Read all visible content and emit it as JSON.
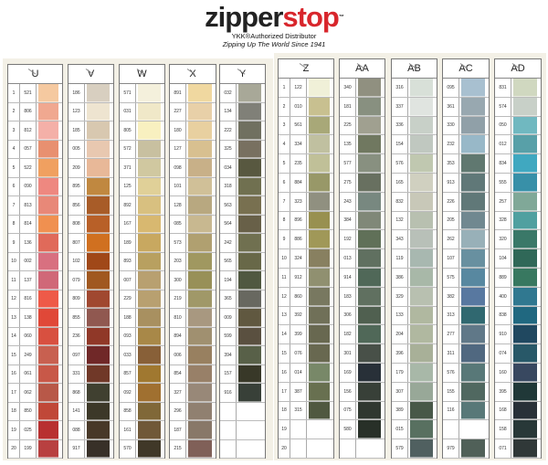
{
  "header": {
    "logo_part1": "zipper",
    "logo_part2": "stop",
    "tm": "™",
    "subtitle": "YKK®Authorized Distributor",
    "tagline": "Zipping Up The World Since 1941"
  },
  "row_numbers": [
    "1",
    "2",
    "3",
    "4",
    "5",
    "6",
    "7",
    "8",
    "9",
    "10",
    "11",
    "12",
    "13",
    "14",
    "15",
    "16",
    "17",
    "18",
    "19",
    "20"
  ],
  "panels": [
    {
      "columns": [
        {
          "label": "U",
          "codes": [
            "521",
            "806",
            "812",
            "057",
            "522",
            "090",
            "813",
            "814",
            "136",
            "002",
            "137",
            "816",
            "138",
            "060",
            "249",
            "061",
            "062",
            "850",
            "025",
            "199"
          ],
          "colors": [
            "#f5c9a0",
            "#f0a890",
            "#f4b0a8",
            "#e89070",
            "#f0a060",
            "#ee8880",
            "#e88878",
            "#f09050",
            "#e06a5a",
            "#d87080",
            "#d06878",
            "#ee5a48",
            "#e04838",
            "#d85040",
            "#c86050",
            "#c85848",
            "#b85848",
            "#c04838",
            "#b83030",
            "#b84040"
          ]
        },
        {
          "label": "V",
          "codes": [
            "186",
            "123",
            "185",
            "005",
            "209",
            "895",
            "856",
            "808",
            "807",
            "102",
            "079",
            "809",
            "855",
            "236",
            "097",
            "331",
            "868",
            "141",
            "088",
            "917"
          ],
          "colors": [
            "#d8cfc0",
            "#eee4d0",
            "#d8c8b0",
            "#e8c8b0",
            "#e8b898",
            "#c08840",
            "#a85c28",
            "#b86028",
            "#d07020",
            "#a04818",
            "#a05820",
            "#a04830",
            "#905850",
            "#903828",
            "#702828",
            "#703828",
            "#404030",
            "#3c3828",
            "#483828",
            "#383028"
          ]
        },
        {
          "label": "W",
          "codes": [
            "571",
            "031",
            "805",
            "572",
            "371",
            "125",
            "892",
            "167",
            "189",
            "893",
            "007",
            "229",
            "188",
            "093",
            "033",
            "857",
            "092",
            "858",
            "161",
            "570"
          ],
          "colors": [
            "#f4f0dc",
            "#f0e8c8",
            "#f8f0c0",
            "#c8c0a0",
            "#d0c8a0",
            "#e0d098",
            "#d8c080",
            "#d8b870",
            "#c8a860",
            "#b8a060",
            "#b8a070",
            "#b8a070",
            "#a89060",
            "#a88848",
            "#886038",
            "#a07830",
            "#a07030",
            "#806838",
            "#705838",
            "#403828"
          ]
        },
        {
          "label": "X",
          "codes": [
            "891",
            "227",
            "180",
            "127",
            "098",
            "101",
            "128",
            "085",
            "573",
            "203",
            "300",
            "219",
            "810",
            "894",
            "006",
            "854",
            "327",
            "296",
            "187",
            "215"
          ],
          "colors": [
            "#f0d8a0",
            "#e8d0a8",
            "#e8d0a0",
            "#d8c090",
            "#c8b088",
            "#d0c098",
            "#b8a880",
            "#c8b890",
            "#b0a070",
            "#a09860",
            "#989058",
            "#a09868",
            "#a89880",
            "#a09070",
            "#988060",
            "#988068",
            "#988878",
            "#908070",
            "#887868",
            "#806058"
          ]
        },
        {
          "label": "Y",
          "codes": [
            "032",
            "134",
            "222",
            "325",
            "034",
            "318",
            "563",
            "564",
            "242",
            "565",
            "194",
            "365",
            "009",
            "599",
            "394",
            "157",
            "916",
            "",
            "",
            ""
          ],
          "colors": [
            "#a8a898",
            "#808078",
            "#707060",
            "#787060",
            "#585840",
            "#707050",
            "#787050",
            "#686048",
            "#707050",
            "#686848",
            "#505840",
            "#686860",
            "#605840",
            "#5a5040",
            "#586048",
            "#383828",
            "#384038",
            "",
            "",
            ""
          ]
        }
      ]
    },
    {
      "columns": [
        {
          "label": "Z",
          "codes": [
            "122",
            "010",
            "561",
            "334",
            "235",
            "884",
            "323",
            "896",
            "886",
            "324",
            "912",
            "860",
            "392",
            "399",
            "076",
            "014",
            "387",
            "315",
            "",
            ""
          ],
          "colors": [
            "#f0f0d8",
            "#c8c090",
            "#a8a878",
            "#c0c0a0",
            "#c0c098",
            "#989868",
            "#909080",
            "#989050",
            "#a09858",
            "#888060",
            "#909070",
            "#787860",
            "#707058",
            "#686850",
            "#686850",
            "#788868",
            "#687050",
            "#505840",
            "",
            ""
          ]
        },
        {
          "label": "AA",
          "codes": [
            "340",
            "181",
            "225",
            "135",
            "577",
            "275",
            "243",
            "384",
            "192",
            "013",
            "914",
            "183",
            "306",
            "182",
            "301",
            "169",
            "156",
            "075",
            "580",
            ""
          ],
          "colors": [
            "#909080",
            "#889080",
            "#a0a090",
            "#707860",
            "#889080",
            "#687060",
            "#788880",
            "#808878",
            "#607058",
            "#607060",
            "#506858",
            "#607060",
            "#506050",
            "#506858",
            "#485048",
            "#283038",
            "#384038",
            "#303830",
            "#283028",
            ""
          ]
        },
        {
          "label": "AB",
          "codes": [
            "316",
            "337",
            "336",
            "154",
            "576",
            "165",
            "832",
            "132",
            "343",
            "119",
            "386",
            "329",
            "133",
            "204",
            "396",
            "179",
            "307",
            "389",
            "015",
            "579"
          ],
          "colors": [
            "#d8e0d8",
            "#e0e4e0",
            "#c8d0c8",
            "#c0c8c0",
            "#c0c8b0",
            "#d0d0c0",
            "#c8c8b8",
            "#b8c0b0",
            "#b8c0b8",
            "#a8b8b0",
            "#a8b8a8",
            "#b8c0b0",
            "#b0b8a0",
            "#b0b8a0",
            "#a8b098",
            "#a8b8a8",
            "#98a898",
            "#485848",
            "#587060",
            "#506060"
          ]
        },
        {
          "label": "AC",
          "codes": [
            "095",
            "361",
            "330",
            "232",
            "353",
            "913",
            "226",
            "205",
            "262",
            "107",
            "575",
            "382",
            "313",
            "277",
            "311",
            "576",
            "155",
            "116",
            "",
            "979"
          ],
          "colors": [
            "#a8c0d0",
            "#98a8b0",
            "#90a0a8",
            "#98b8c8",
            "#607870",
            "#607878",
            "#607878",
            "#708890",
            "#98b0b8",
            "#6890a0",
            "#5888a0",
            "#5878a0",
            "#306870",
            "#607888",
            "#506880",
            "#587878",
            "#506860",
            "#587878",
            "",
            "#506058"
          ]
        },
        {
          "label": "AD",
          "codes": [
            "831",
            "574",
            "050",
            "012",
            "834",
            "555",
            "257",
            "328",
            "320",
            "104",
            "889",
            "400",
            "838",
            "910",
            "074",
            "160",
            "395",
            "168",
            "158",
            "071"
          ],
          "colors": [
            "#d0d8c0",
            "#c8d0c8",
            "#70b8c0",
            "#58a0a8",
            "#40a8c0",
            "#3890a8",
            "#80a898",
            "#50a0a0",
            "#3a7868",
            "#306858",
            "#387860",
            "#307890",
            "#206880",
            "#204860",
            "#285868",
            "#384860",
            "#203838",
            "#283038",
            "#283838",
            "#303838"
          ]
        }
      ]
    }
  ]
}
